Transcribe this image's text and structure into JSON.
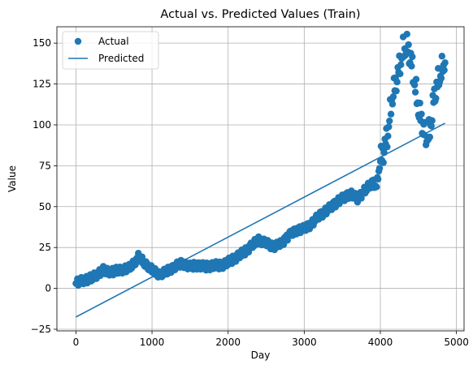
{
  "chart_data": {
    "type": "scatter",
    "title": "Actual vs. Predicted Values (Train)",
    "xlabel": "Day",
    "ylabel": "Value",
    "xlim": [
      -250,
      5100
    ],
    "ylim": [
      -26,
      160
    ],
    "xticks": [
      0,
      1000,
      2000,
      3000,
      4000,
      5000
    ],
    "yticks": [
      -25,
      0,
      25,
      50,
      75,
      100,
      125,
      150
    ],
    "grid": true,
    "legend_position": "top-left",
    "colors": {
      "series": "#1f77b4",
      "grid": "#b0b0b0",
      "axis": "#000000"
    },
    "series": [
      {
        "name": "Actual",
        "kind": "scatter",
        "points": [
          [
            0,
            3
          ],
          [
            100,
            5
          ],
          [
            200,
            6
          ],
          [
            300,
            9
          ],
          [
            350,
            11
          ],
          [
            400,
            10
          ],
          [
            500,
            10
          ],
          [
            600,
            11
          ],
          [
            700,
            12
          ],
          [
            780,
            16
          ],
          [
            820,
            19
          ],
          [
            900,
            15
          ],
          [
            1000,
            11
          ],
          [
            1050,
            9
          ],
          [
            1100,
            8
          ],
          [
            1200,
            10
          ],
          [
            1300,
            13
          ],
          [
            1400,
            15
          ],
          [
            1500,
            13
          ],
          [
            1600,
            14
          ],
          [
            1700,
            13
          ],
          [
            1800,
            14
          ],
          [
            1900,
            14
          ],
          [
            2000,
            16
          ],
          [
            2100,
            19
          ],
          [
            2200,
            22
          ],
          [
            2300,
            26
          ],
          [
            2400,
            30
          ],
          [
            2500,
            28
          ],
          [
            2600,
            26
          ],
          [
            2700,
            28
          ],
          [
            2800,
            33
          ],
          [
            2900,
            36
          ],
          [
            3000,
            37
          ],
          [
            3100,
            40
          ],
          [
            3200,
            45
          ],
          [
            3300,
            48
          ],
          [
            3400,
            52
          ],
          [
            3500,
            55
          ],
          [
            3600,
            58
          ],
          [
            3700,
            55
          ],
          [
            3800,
            60
          ],
          [
            3900,
            65
          ],
          [
            3950,
            62
          ],
          [
            4000,
            78
          ],
          [
            4050,
            85
          ],
          [
            4100,
            95
          ],
          [
            4150,
            115
          ],
          [
            4200,
            125
          ],
          [
            4250,
            135
          ],
          [
            4300,
            145
          ],
          [
            4350,
            148
          ],
          [
            4400,
            140
          ],
          [
            4450,
            125
          ],
          [
            4500,
            110
          ],
          [
            4550,
            100
          ],
          [
            4600,
            92
          ],
          [
            4650,
            95
          ],
          [
            4700,
            115
          ],
          [
            4750,
            125
          ],
          [
            4800,
            132
          ],
          [
            4850,
            138
          ]
        ]
      },
      {
        "name": "Predicted",
        "kind": "line",
        "points": [
          [
            0,
            -17.5
          ],
          [
            4850,
            101
          ]
        ]
      }
    ]
  }
}
